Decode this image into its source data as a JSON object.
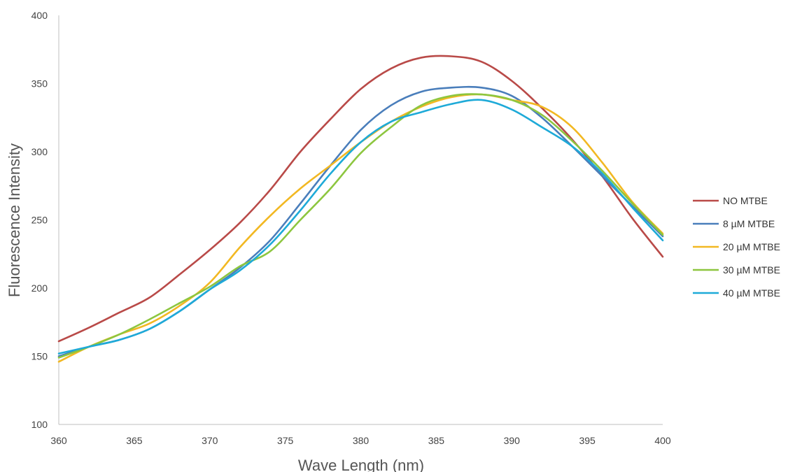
{
  "chart_data": {
    "type": "line",
    "xlabel": "Wave Length (nm)",
    "ylabel": "Fluorescence Intensity",
    "xlim": [
      360,
      400
    ],
    "ylim": [
      100,
      400
    ],
    "xticks": [
      360,
      365,
      370,
      375,
      380,
      385,
      390,
      395,
      400
    ],
    "yticks": [
      100,
      150,
      200,
      250,
      300,
      350,
      400
    ],
    "grid": false,
    "legend_position": "right",
    "x": [
      360,
      362,
      364,
      366,
      368,
      370,
      372,
      374,
      376,
      378,
      380,
      382,
      384,
      386,
      388,
      390,
      392,
      394,
      396,
      398,
      400
    ],
    "series": [
      {
        "name": "NO MTBE",
        "color": "#B94A48",
        "values": [
          161,
          171,
          182,
          193,
          210,
          228,
          248,
          272,
          300,
          324,
          346,
          361,
          369,
          370,
          366,
          352,
          332,
          309,
          282,
          251,
          223
        ]
      },
      {
        "name": "8 µM MTBE",
        "color": "#4A7EBB",
        "values": [
          150,
          157,
          162,
          170,
          183,
          199,
          215,
          235,
          262,
          290,
          316,
          334,
          344,
          347,
          347,
          341,
          325,
          304,
          282,
          260,
          238
        ]
      },
      {
        "name": "20 µM MTBE",
        "color": "#F2B822",
        "values": [
          146,
          157,
          166,
          174,
          187,
          204,
          230,
          253,
          273,
          290,
          307,
          322,
          333,
          340,
          342,
          338,
          333,
          318,
          292,
          263,
          240
        ]
      },
      {
        "name": "30 µM MTBE",
        "color": "#8DC63F",
        "values": [
          149,
          157,
          166,
          177,
          189,
          201,
          216,
          227,
          250,
          273,
          299,
          318,
          334,
          341,
          342,
          338,
          327,
          308,
          286,
          262,
          239
        ]
      },
      {
        "name": "40 µM MTBE",
        "color": "#1EAAD8",
        "values": [
          152,
          157,
          162,
          170,
          183,
          199,
          213,
          232,
          257,
          284,
          307,
          322,
          329,
          335,
          338,
          331,
          318,
          304,
          284,
          259,
          235
        ]
      }
    ]
  }
}
